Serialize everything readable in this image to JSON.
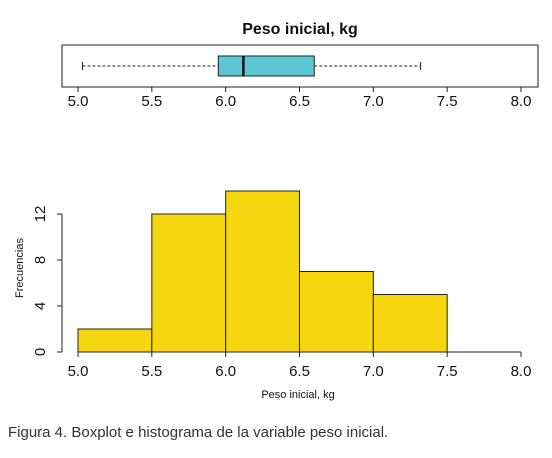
{
  "caption": "Figura 4. Boxplot e histograma de la variable peso inicial.",
  "chart_data": [
    {
      "type": "box",
      "title": "Peso inicial, kg",
      "xlim": [
        5.0,
        8.0
      ],
      "x_ticks": [
        "5.0",
        "5.5",
        "6.0",
        "6.5",
        "7.0",
        "7.5",
        "8.0"
      ],
      "stats": {
        "min": 5.03,
        "q1": 5.95,
        "median": 6.12,
        "q3": 6.6,
        "max": 7.32
      },
      "box_color": "#5bc8d4",
      "whisker_style": "dashed"
    },
    {
      "type": "bar",
      "xlabel": "Peso inicial, kg",
      "ylabel": "Frecuencias",
      "bins": [
        [
          5.0,
          5.5
        ],
        [
          5.5,
          6.0
        ],
        [
          6.0,
          6.5
        ],
        [
          6.5,
          7.0
        ],
        [
          7.0,
          7.5
        ]
      ],
      "values": [
        2,
        12,
        14,
        7,
        5
      ],
      "xlim": [
        5.0,
        8.0
      ],
      "ylim": [
        0,
        14
      ],
      "x_ticks": [
        "5.0",
        "5.5",
        "6.0",
        "6.5",
        "7.0",
        "7.5",
        "8.0"
      ],
      "y_ticks": [
        "0",
        "4",
        "8",
        "12"
      ],
      "bar_color": "#f5d60f"
    }
  ]
}
